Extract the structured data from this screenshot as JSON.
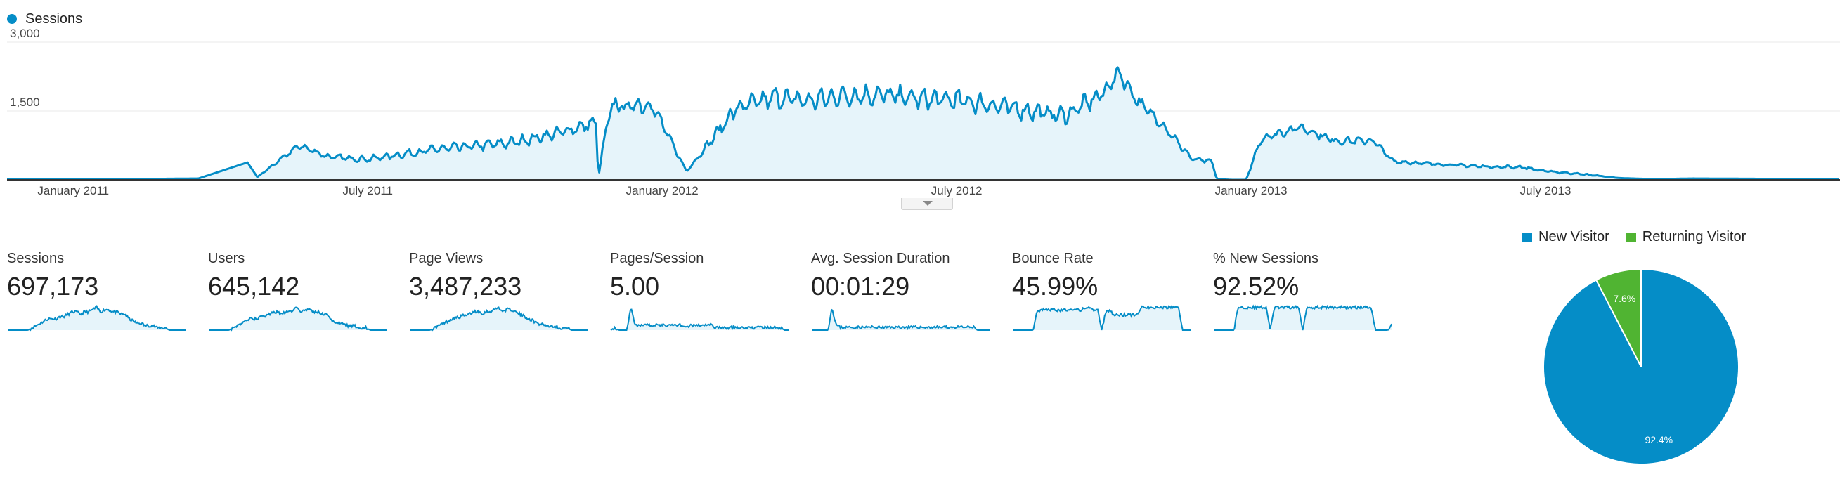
{
  "colors": {
    "primary": "#058dc7",
    "primary_fill": "#e6f4fa",
    "returning": "#50b432",
    "grid": "#e8e8e8"
  },
  "legend": {
    "series_name": "Sessions"
  },
  "chart_data": [
    {
      "type": "area",
      "title": "",
      "legend": "top-left",
      "series_name": "Sessions",
      "y_ticks": [
        "3,000",
        "1,500"
      ],
      "y_tick_values": [
        3000,
        1500
      ],
      "ylim": [
        0,
        3000
      ],
      "x_ticks": [
        "January 2011",
        "July 2011",
        "January 2012",
        "July 2012",
        "January 2013",
        "July 2013"
      ],
      "x_tick_months": [
        0,
        6,
        12,
        18,
        24,
        30
      ],
      "x_range_months": [
        -1.35,
        36.0
      ],
      "x_unit": "month index, 0 = January 2011",
      "x": [
        -1.35,
        1.5,
        2.55,
        3.55,
        3.75,
        4.6,
        5.2,
        6.0,
        7.5,
        8.0,
        9.0,
        9.8,
        10.5,
        10.65,
        10.7,
        10.9,
        11.1,
        11.2,
        11.5,
        11.8,
        12.5,
        13.5,
        14.3,
        15.0,
        15.7,
        16.5,
        17.3,
        18.0,
        18.8,
        19.5,
        20.2,
        20.7,
        21.0,
        21.3,
        21.7,
        22.0,
        22.2,
        22.6,
        22.8,
        23.2,
        23.3,
        23.6,
        23.8,
        23.9,
        24.2,
        25.0,
        25.7,
        26.5,
        26.9,
        28.0,
        29.0,
        29.5,
        30.0,
        30.8,
        31.5,
        32.2,
        33.0,
        36.0
      ],
      "y": [
        10,
        20,
        30,
        380,
        60,
        750,
        500,
        450,
        680,
        720,
        820,
        1000,
        1200,
        1260,
        50,
        1380,
        1700,
        1560,
        1650,
        1620,
        180,
        1550,
        1800,
        1720,
        1840,
        1850,
        1760,
        1740,
        1620,
        1500,
        1400,
        1700,
        1900,
        2350,
        1700,
        1400,
        1200,
        700,
        450,
        400,
        20,
        0,
        0,
        0,
        900,
        1150,
        850,
        850,
        400,
        330,
        280,
        280,
        190,
        120,
        40,
        15,
        30,
        15
      ],
      "noise": [
        0,
        0,
        0,
        0,
        0,
        80,
        80,
        80,
        120,
        130,
        140,
        150,
        170,
        170,
        0,
        250,
        250,
        250,
        250,
        250,
        0,
        260,
        280,
        280,
        280,
        270,
        270,
        270,
        260,
        240,
        230,
        250,
        200,
        200,
        180,
        150,
        120,
        100,
        60,
        50,
        0,
        0,
        0,
        0,
        120,
        120,
        110,
        90,
        50,
        40,
        40,
        40,
        30,
        20,
        0,
        0,
        0,
        0
      ]
    },
    {
      "type": "pie",
      "categories": [
        "New Visitor",
        "Returning Visitor"
      ],
      "values": [
        92.4,
        7.6
      ],
      "labels": [
        "92.4%",
        "7.6%"
      ],
      "colors": [
        "#058dc7",
        "#50b432"
      ],
      "legend": "top"
    }
  ],
  "metrics": [
    {
      "label": "Sessions",
      "value": "697,173",
      "spark": [
        0,
        0,
        0,
        0,
        0,
        0,
        1,
        2,
        3,
        4,
        5,
        5,
        5,
        6,
        6,
        7,
        8,
        8,
        7,
        8,
        8,
        9,
        10,
        8,
        9,
        9,
        8,
        8,
        7,
        7,
        5,
        4,
        3,
        3,
        2,
        2,
        2,
        1,
        1,
        1,
        0,
        0,
        0,
        0,
        0
      ]
    },
    {
      "label": "Users",
      "value": "645,142",
      "spark": [
        0,
        0,
        0,
        0,
        0,
        0,
        1,
        2,
        3,
        4,
        5,
        5,
        5,
        6,
        6,
        7,
        8,
        8,
        7,
        8,
        8,
        9,
        10,
        8,
        9,
        9,
        8,
        8,
        7,
        7,
        5,
        4,
        3,
        3,
        2,
        2,
        2,
        1,
        1,
        1,
        0,
        0,
        0,
        0,
        0
      ]
    },
    {
      "label": "Page Views",
      "value": "3,487,233",
      "spark": [
        0,
        0,
        0,
        0,
        0,
        0,
        1,
        2,
        3,
        4,
        5,
        6,
        6,
        7,
        7,
        8,
        9,
        9,
        8,
        9,
        9,
        10,
        11,
        9,
        10,
        10,
        9,
        8,
        7,
        6,
        5,
        4,
        3,
        3,
        2,
        2,
        2,
        1,
        1,
        1,
        0,
        0,
        0,
        0,
        0
      ]
    },
    {
      "label": "Pages/Session",
      "value": "5.00",
      "spark": [
        0,
        1,
        0,
        0,
        0,
        9,
        2,
        2,
        2,
        2,
        2,
        2,
        2,
        2,
        2,
        2,
        2,
        2,
        2,
        1,
        2,
        2,
        2,
        2,
        2,
        2,
        1,
        1,
        1,
        1,
        1,
        1,
        1,
        1,
        1,
        1,
        1,
        1,
        1,
        1,
        1,
        1,
        1,
        0,
        0
      ]
    },
    {
      "label": "Avg. Session Duration",
      "value": "00:01:29",
      "spark": [
        0,
        0,
        0,
        0,
        0,
        8,
        2,
        1,
        1,
        1,
        1,
        1,
        1,
        1,
        1,
        1,
        1,
        1,
        1,
        1,
        1,
        1,
        1,
        1,
        1,
        1,
        1,
        1,
        1,
        1,
        1,
        1,
        1,
        1,
        1,
        1,
        1,
        1,
        1,
        1,
        1,
        0,
        0,
        0,
        0
      ]
    },
    {
      "label": "Bounce Rate",
      "value": "45.99%",
      "spark": [
        0,
        0,
        0,
        0,
        0,
        0,
        7,
        8,
        8,
        8,
        8,
        8,
        8,
        8,
        8,
        8,
        8,
        8,
        9,
        9,
        8,
        8,
        0,
        7,
        8,
        6,
        6,
        6,
        6,
        6,
        6,
        6,
        9,
        9,
        9,
        9,
        9,
        9,
        9,
        9,
        9,
        9,
        0,
        0,
        0
      ]
    },
    {
      "label": "% New Sessions",
      "value": "92.52%",
      "spark": [
        0,
        0,
        0,
        0,
        0,
        0,
        13,
        13,
        13,
        13,
        13,
        13,
        13,
        13,
        0,
        13,
        13,
        13,
        13,
        13,
        13,
        13,
        0,
        13,
        13,
        13,
        13,
        13,
        13,
        13,
        13,
        13,
        13,
        13,
        13,
        13,
        13,
        13,
        13,
        13,
        0,
        0,
        0,
        0,
        3
      ]
    }
  ]
}
